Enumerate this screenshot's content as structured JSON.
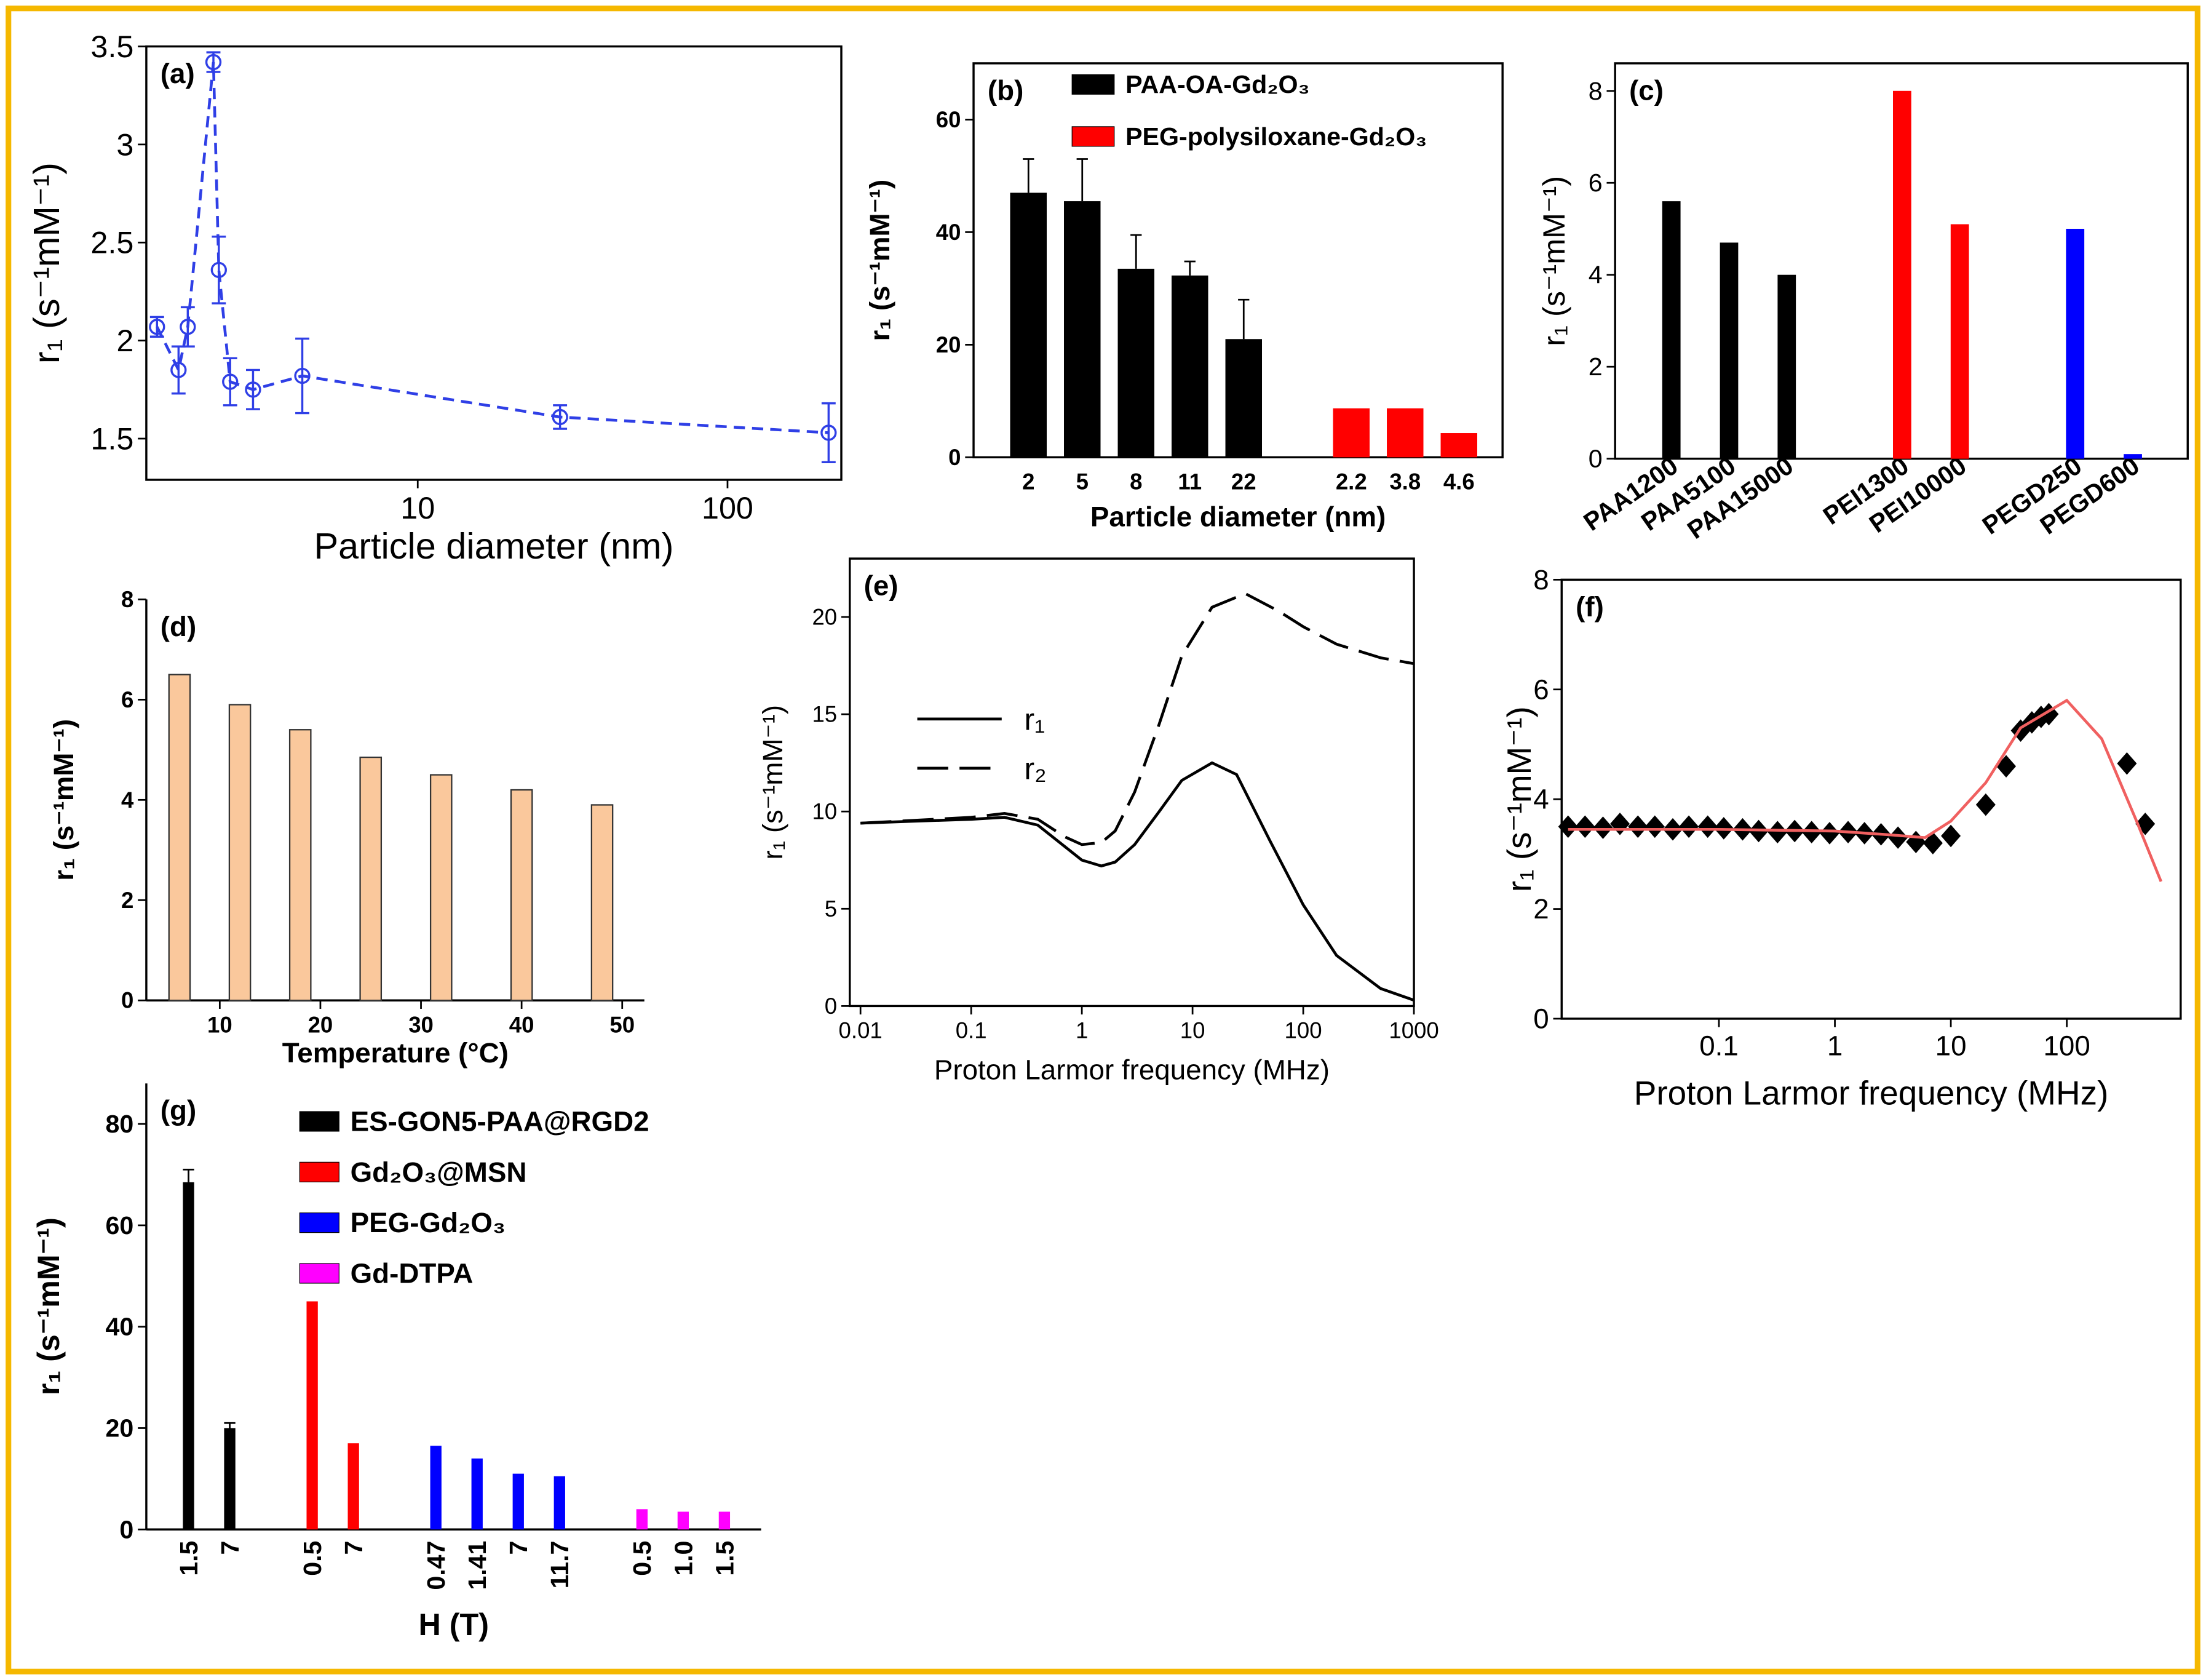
{
  "chart_data": [
    {
      "type": "line",
      "title": "(a)",
      "x_label": "Particle diameter (nm)",
      "y_label": "r₁ (s⁻¹mM⁻¹)",
      "xscale": "log",
      "x": [
        1.44,
        1.69,
        1.81,
        2.19,
        2.28,
        2.48,
        2.94,
        4.24,
        28.8,
        212
      ],
      "values": [
        2.07,
        1.85,
        2.07,
        3.42,
        2.36,
        1.79,
        1.75,
        1.82,
        1.61,
        1.53
      ],
      "errors": [
        0.05,
        0.12,
        0.1,
        0.05,
        0.17,
        0.12,
        0.1,
        0.19,
        0.06,
        0.15
      ],
      "color": "#2f3fe6",
      "marker": "circle",
      "linestyle": "dashed",
      "xlim": [
        1.33,
        233
      ],
      "xticks": [
        10,
        100
      ],
      "ylim": [
        1.29,
        3.5
      ],
      "yticks": [
        1.5,
        2,
        2.5,
        3,
        3.5
      ]
    },
    {
      "type": "bar",
      "title": "(b)",
      "x_label": "Particle diameter (nm)",
      "y_label": "r₁ (s⁻¹mM⁻¹)",
      "categories": [
        "2",
        "5",
        "8",
        "11",
        "22",
        null,
        "2.2",
        "3.8",
        "4.6"
      ],
      "series": [
        {
          "name": "PAA-OA-Gd₂O₃",
          "color": "#000000",
          "values": [
            47,
            45.5,
            33.5,
            32.3,
            21,
            null,
            null,
            null,
            null
          ],
          "errors": [
            6,
            7.5,
            6,
            2.5,
            7,
            null,
            null,
            null,
            null
          ]
        },
        {
          "name": "PEG-polysiloxane-Gd₂O₃",
          "color": "#ff0000",
          "values": [
            null,
            null,
            null,
            null,
            null,
            null,
            8.7,
            8.7,
            4.3
          ]
        }
      ],
      "ylim": [
        0,
        70
      ],
      "yticks": [
        0,
        20,
        40,
        60
      ]
    },
    {
      "type": "bar",
      "title": "(c)",
      "y_label": "r₁ (s⁻¹mM⁻¹)",
      "categories": [
        "PAA1200",
        "PAA5100",
        "PAA15000",
        null,
        "PEI1300",
        "PEI10000",
        null,
        "PEGD250",
        "PEGD600"
      ],
      "values": [
        5.6,
        4.7,
        4.0,
        null,
        8.0,
        5.1,
        null,
        5.0,
        0.1
      ],
      "colors": [
        "#000000",
        "#000000",
        "#000000",
        null,
        "#ff0000",
        "#ff0000",
        null,
        "#0000ff",
        "#0000ff"
      ],
      "ylim": [
        0,
        8.6
      ],
      "yticks": [
        0,
        2,
        4,
        6,
        8
      ]
    },
    {
      "type": "bar",
      "title": "(d)",
      "x_label": "Temperature (°C)",
      "y_label": "r₁ (s⁻¹mM⁻¹)",
      "x": [
        6,
        12,
        18,
        25,
        32,
        40,
        48
      ],
      "values": [
        6.5,
        5.9,
        5.4,
        4.85,
        4.5,
        4.2,
        3.9
      ],
      "color": "#fac89c",
      "edgecolor": "#333333",
      "xlim": [
        2.7,
        52.2
      ],
      "xticks": [
        10,
        20,
        30,
        40,
        50
      ],
      "ylim": [
        0,
        8
      ],
      "yticks": [
        0,
        2,
        4,
        6,
        8
      ]
    },
    {
      "type": "line",
      "title": "(e)",
      "x_label": "Proton Larmor frequency (MHz)",
      "y_label": "r₁ (s⁻¹mM⁻¹)",
      "xscale": "log",
      "series": [
        {
          "name": "r₁",
          "color": "#000000",
          "linestyle": "solid",
          "x": [
            0.01,
            0.03,
            0.1,
            0.2,
            0.4,
            0.7,
            1,
            1.5,
            2,
            3,
            5,
            8,
            15,
            25,
            50,
            100,
            200,
            500,
            1000
          ],
          "values": [
            9.4,
            9.5,
            9.6,
            9.7,
            9.3,
            8.2,
            7.5,
            7.2,
            7.4,
            8.3,
            10,
            11.6,
            12.5,
            11.9,
            8.5,
            5.2,
            2.6,
            0.9,
            0.3
          ]
        },
        {
          "name": "r₂",
          "color": "#000000",
          "linestyle": "dashed",
          "x": [
            0.01,
            0.1,
            0.2,
            0.4,
            0.7,
            1,
            1.5,
            2,
            3,
            5,
            8,
            15,
            30,
            60,
            100,
            200,
            500,
            1000
          ],
          "values": [
            9.4,
            9.7,
            9.9,
            9.6,
            8.7,
            8.3,
            8.4,
            9,
            11,
            14.5,
            18,
            20.5,
            21.2,
            20.3,
            19.5,
            18.6,
            17.9,
            17.6
          ]
        }
      ],
      "xlim": [
        0.008,
        1000
      ],
      "xticks": [
        0.01,
        0.1,
        1,
        10,
        100,
        1000
      ],
      "ylim": [
        0,
        23
      ],
      "yticks": [
        0,
        5,
        10,
        15,
        20
      ]
    },
    {
      "type": "scatter",
      "title": "(f)",
      "x_label": "Proton Larmor frequency (MHz)",
      "y_label": "r₁ (s⁻¹mM⁻¹)",
      "xscale": "log",
      "series": [
        {
          "color": "#000000",
          "marker": "diamond",
          "x": [
            0.005,
            0.007,
            0.01,
            0.014,
            0.02,
            0.028,
            0.04,
            0.055,
            0.08,
            0.11,
            0.16,
            0.22,
            0.32,
            0.45,
            0.63,
            0.9,
            1.3,
            1.8,
            2.5,
            3.5,
            5,
            7,
            10,
            20,
            30,
            40,
            50,
            60,
            70,
            330,
            475
          ],
          "values": [
            3.5,
            3.5,
            3.48,
            3.55,
            3.5,
            3.5,
            3.45,
            3.5,
            3.5,
            3.47,
            3.45,
            3.42,
            3.4,
            3.42,
            3.4,
            3.38,
            3.4,
            3.38,
            3.36,
            3.3,
            3.22,
            3.2,
            3.33,
            3.9,
            4.6,
            5.25,
            5.4,
            5.5,
            5.55,
            4.65,
            3.55
          ]
        },
        {
          "color": "#f06060",
          "linestyle": "solid",
          "x": [
            0.005,
            0.1,
            1,
            3,
            6,
            10,
            20,
            40,
            100,
            200,
            400,
            650
          ],
          "values": [
            3.45,
            3.45,
            3.42,
            3.35,
            3.3,
            3.6,
            4.3,
            5.3,
            5.8,
            5.1,
            3.6,
            2.5
          ]
        }
      ],
      "xlim": [
        0.0044,
        960
      ],
      "xticks": [
        0.1,
        1,
        10,
        100
      ],
      "ylim": [
        0,
        8
      ],
      "yticks": [
        0,
        2,
        4,
        6,
        8
      ]
    },
    {
      "type": "bar",
      "title": "(g)",
      "x_label": "H (T)",
      "y_label": "r₁ (s⁻¹mM⁻¹)",
      "categories": [
        "1.5",
        "7",
        null,
        "0.5",
        "7",
        null,
        "0.47",
        "1.41",
        "7",
        "11.7",
        null,
        "0.5",
        "1.0",
        "1.5"
      ],
      "series": [
        {
          "name": "ES-GON5-PAA@RGD2",
          "color": "#000000",
          "values": [
            68.5,
            20,
            null,
            null,
            null,
            null,
            null,
            null,
            null,
            null,
            null,
            null,
            null,
            null
          ],
          "errors": [
            2.5,
            1,
            null,
            null,
            null,
            null,
            null,
            null,
            null,
            null,
            null,
            null,
            null,
            null
          ]
        },
        {
          "name": "Gd₂O₃@MSN",
          "color": "#ff0000",
          "values": [
            null,
            null,
            null,
            45,
            17,
            null,
            null,
            null,
            null,
            null,
            null,
            null,
            null,
            null
          ]
        },
        {
          "name": "PEG-Gd₂O₃",
          "color": "#0000ff",
          "values": [
            null,
            null,
            null,
            null,
            null,
            null,
            16.5,
            14,
            11,
            10.5,
            null,
            null,
            null,
            null
          ]
        },
        {
          "name": "Gd-DTPA",
          "color": "#ff00ff",
          "values": [
            null,
            null,
            null,
            null,
            null,
            null,
            null,
            null,
            null,
            null,
            null,
            4,
            3.5,
            3.5
          ]
        }
      ],
      "ylim": [
        0,
        88
      ],
      "yticks": [
        0,
        20,
        40,
        60,
        80
      ]
    }
  ]
}
